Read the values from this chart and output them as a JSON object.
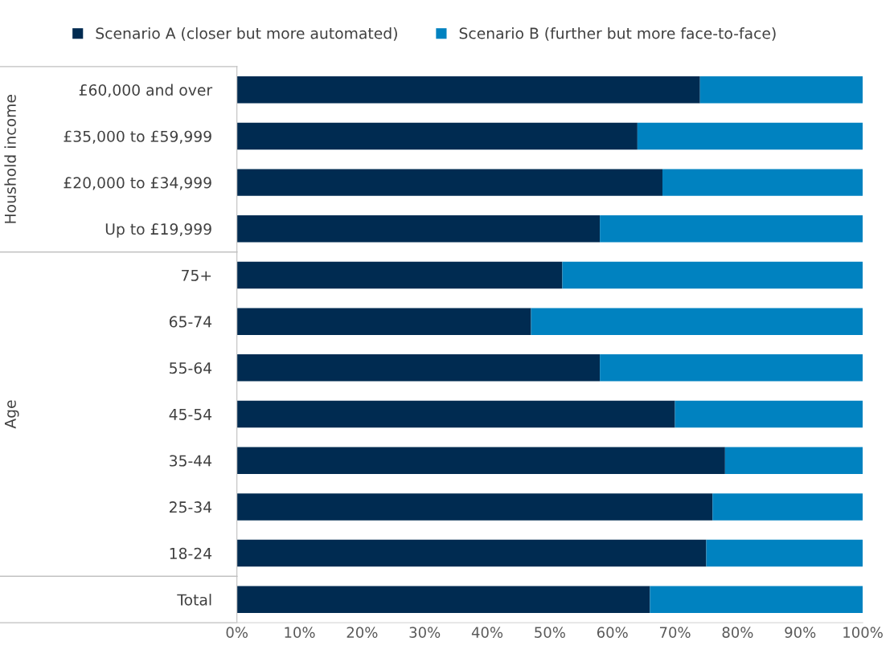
{
  "chart_data": {
    "type": "bar",
    "orientation": "horizontal",
    "stacked": true,
    "categories": [
      "£60,000 and over",
      "£35,000 to £59,999",
      "£20,000 to £34,999",
      "Up to £19,999",
      "75+",
      "65-74",
      "55-64",
      "45-54",
      "35-44",
      "25-34",
      "18-24",
      "Total"
    ],
    "series": [
      {
        "name": "Scenario A (closer but more automated)",
        "color": "#002b51",
        "values": [
          74,
          64,
          68,
          58,
          52,
          47,
          58,
          70,
          78,
          76,
          75,
          66
        ]
      },
      {
        "name": "Scenario B (further but more face-to-face)",
        "color": "#0082c0",
        "values": [
          26,
          36,
          32,
          42,
          48,
          53,
          42,
          30,
          22,
          24,
          25,
          34
        ]
      }
    ],
    "xlim": [
      0,
      100
    ],
    "xticks": [
      {
        "value": 0,
        "label": "0%"
      },
      {
        "value": 10,
        "label": "10%"
      },
      {
        "value": 20,
        "label": "20%"
      },
      {
        "value": 30,
        "label": "30%"
      },
      {
        "value": 40,
        "label": "40%"
      },
      {
        "value": 50,
        "label": "50%"
      },
      {
        "value": 60,
        "label": "60%"
      },
      {
        "value": 70,
        "label": "70%"
      },
      {
        "value": 80,
        "label": "80%"
      },
      {
        "value": 90,
        "label": "90%"
      },
      {
        "value": 100,
        "label": "100%"
      }
    ],
    "annotations": [
      "Houshold income",
      "Age"
    ],
    "legend": "top",
    "grid": false
  }
}
